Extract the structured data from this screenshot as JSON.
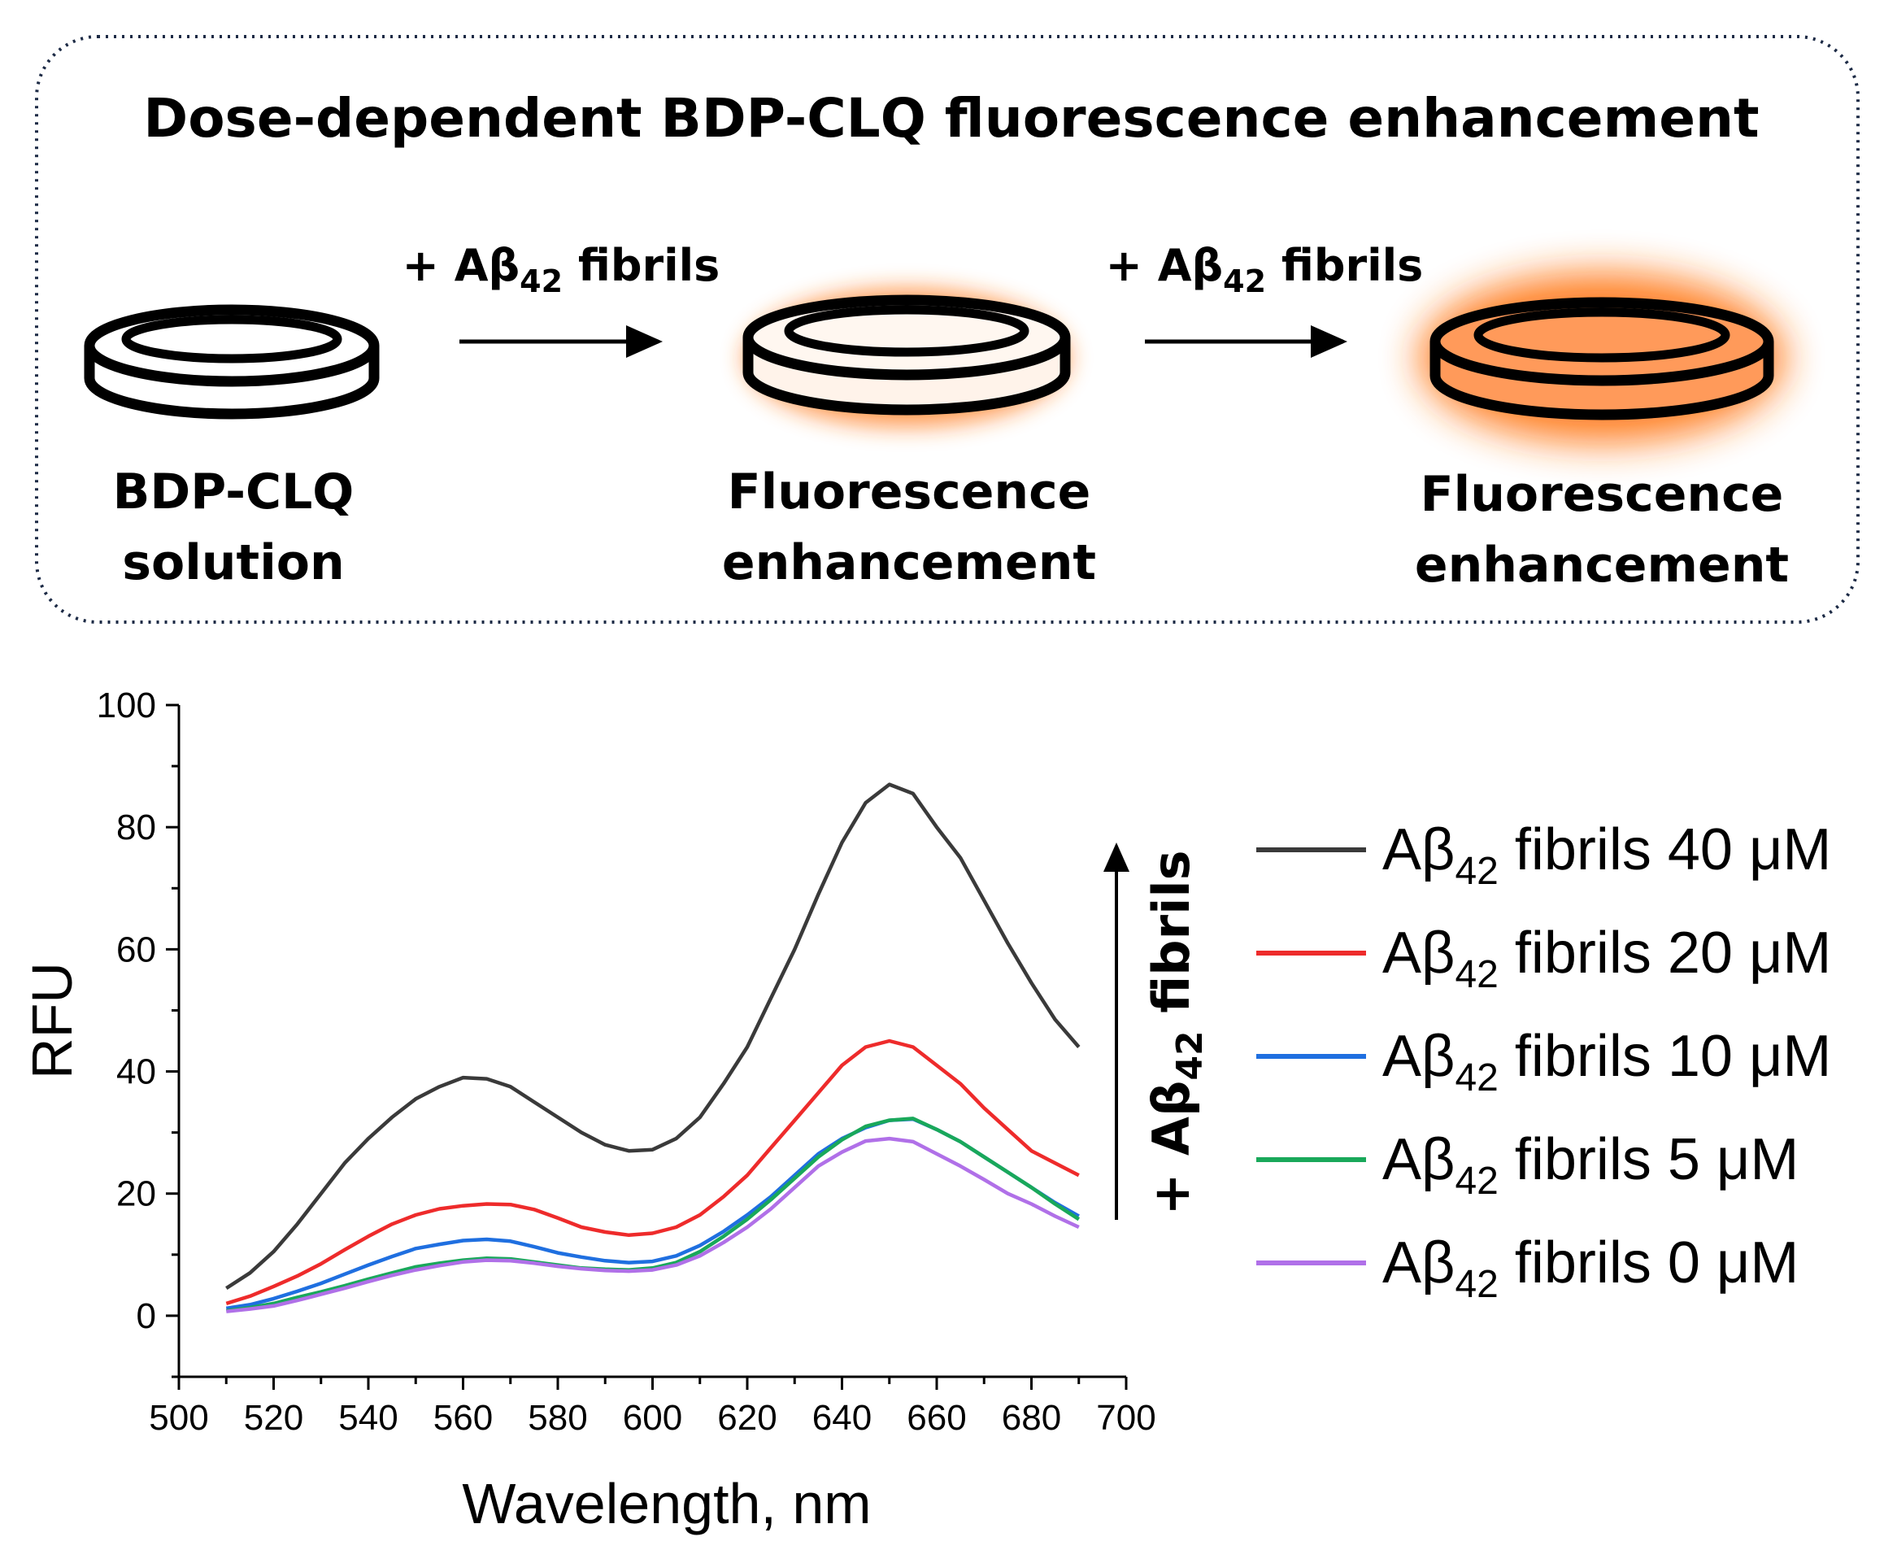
{
  "schematic": {
    "title": "Dose-dependent BDP-CLQ fluorescence enhancement",
    "step_arrow_label": {
      "prefix": "+ Aβ",
      "sub": "42",
      "suffix": " fibrils"
    },
    "dish_labels": [
      {
        "line1": "BDP-CLQ",
        "line2": "solution"
      },
      {
        "line1": "Fluorescence",
        "line2": "enhancement"
      },
      {
        "line1": "Fluorescence",
        "line2": "enhancement"
      }
    ],
    "glow_color": "#ff7a1f",
    "fill_color": "#ff9a5a"
  },
  "trend_label": {
    "prefix": "+ Aβ",
    "sub": "42",
    "suffix": " fibrils"
  },
  "chart_data": {
    "type": "line",
    "xlabel": "Wavelength, nm",
    "ylabel": "RFU",
    "xlim": [
      500,
      700
    ],
    "ylim": [
      -10,
      100
    ],
    "xticks": [
      500,
      520,
      540,
      560,
      580,
      600,
      620,
      640,
      660,
      680,
      700
    ],
    "yticks": [
      0,
      20,
      40,
      60,
      80,
      100
    ],
    "grid": false,
    "legend_position": "right",
    "x": [
      510,
      515,
      520,
      525,
      530,
      535,
      540,
      545,
      550,
      555,
      560,
      565,
      570,
      575,
      580,
      585,
      590,
      595,
      600,
      605,
      610,
      615,
      620,
      625,
      630,
      635,
      640,
      645,
      650,
      655,
      660,
      665,
      670,
      675,
      680,
      685,
      690
    ],
    "series": [
      {
        "name": "40",
        "color": "#3a3a3a",
        "values": [
          4.5,
          7,
          10.5,
          15,
          20,
          25,
          29,
          32.5,
          35.5,
          37.5,
          39,
          38.8,
          37.5,
          35,
          32.5,
          30,
          28,
          27,
          27.2,
          29,
          32.5,
          38,
          44,
          52,
          60,
          69,
          77.5,
          84,
          87,
          85.5,
          80,
          75,
          68,
          61,
          54.5,
          48.5,
          44
        ]
      },
      {
        "name": "20",
        "color": "#ee2b2b",
        "values": [
          2,
          3.2,
          4.8,
          6.5,
          8.5,
          10.8,
          13,
          15,
          16.5,
          17.5,
          18,
          18.3,
          18.2,
          17.4,
          16,
          14.5,
          13.7,
          13.2,
          13.5,
          14.5,
          16.5,
          19.5,
          23,
          27.5,
          32,
          36.5,
          41,
          44,
          45,
          44,
          41,
          38,
          34,
          30.5,
          27,
          25,
          23
        ]
      },
      {
        "name": "10",
        "color": "#1f6fe0",
        "values": [
          1.2,
          1.8,
          2.8,
          4,
          5.3,
          6.8,
          8.3,
          9.7,
          11,
          11.7,
          12.3,
          12.5,
          12.2,
          11.3,
          10.3,
          9.6,
          9,
          8.7,
          8.9,
          9.8,
          11.5,
          13.8,
          16.5,
          19.5,
          23,
          26.5,
          29,
          30.8,
          32,
          32.2,
          30.5,
          28.5,
          26,
          23.5,
          21,
          18.5,
          16.3
        ]
      },
      {
        "name": "5",
        "color": "#19a85a",
        "values": [
          0.8,
          1.3,
          2,
          3,
          3.9,
          4.9,
          6,
          7,
          8,
          8.6,
          9.1,
          9.4,
          9.3,
          8.8,
          8.3,
          7.8,
          7.6,
          7.5,
          7.8,
          8.7,
          10.5,
          13,
          15.8,
          19,
          22.5,
          26,
          28.8,
          31,
          32,
          32.3,
          30.5,
          28.5,
          26,
          23.5,
          21,
          18.3,
          15.8
        ]
      },
      {
        "name": "0",
        "color": "#b070e8",
        "values": [
          0.7,
          1.1,
          1.6,
          2.5,
          3.5,
          4.5,
          5.6,
          6.6,
          7.5,
          8.2,
          8.8,
          9.1,
          9,
          8.6,
          8.1,
          7.7,
          7.4,
          7.3,
          7.5,
          8.3,
          9.8,
          12,
          14.5,
          17.5,
          21,
          24.5,
          26.8,
          28.6,
          29,
          28.5,
          26.5,
          24.5,
          22.3,
          20,
          18.3,
          16.3,
          14.5
        ]
      }
    ],
    "legend_entries": [
      {
        "prefix": "Aβ",
        "sub": "42",
        "suffix": " fibrils 40 μM"
      },
      {
        "prefix": "Aβ",
        "sub": "42",
        "suffix": " fibrils 20 μM"
      },
      {
        "prefix": "Aβ",
        "sub": "42",
        "suffix": " fibrils 10 μM"
      },
      {
        "prefix": "Aβ",
        "sub": "42",
        "suffix": " fibrils 5 μM"
      },
      {
        "prefix": "Aβ",
        "sub": "42",
        "suffix": " fibrils 0 μM"
      }
    ]
  }
}
